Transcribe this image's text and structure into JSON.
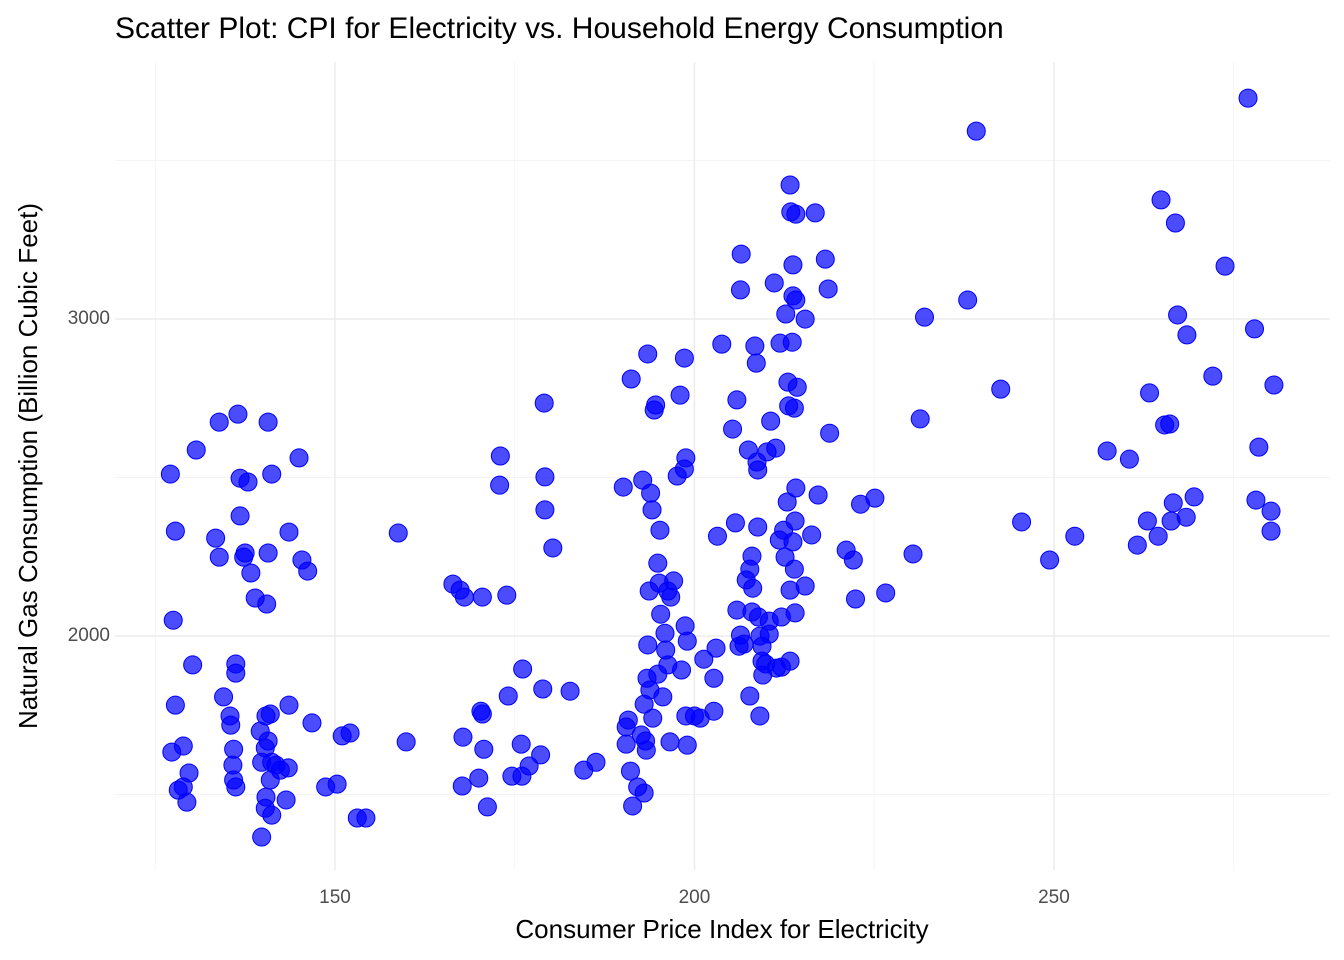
{
  "chart_data": {
    "type": "scatter",
    "title": "Scatter Plot: CPI for Electricity vs. Household Energy Consumption",
    "x_label": "Consumer Price Index for Electricity",
    "y_label": "Natural Gas Consumption (Billion Cubic Feet)",
    "color": "#0000ff",
    "xlim": [
      119.4,
      288.4
    ],
    "ylim": [
      1262,
      3811
    ],
    "xticks": [
      150,
      200,
      250
    ],
    "yticks": [
      2000,
      3000
    ],
    "xminorticks": [
      125,
      175,
      225,
      275
    ],
    "yminorticks": [
      1500,
      2500,
      3500
    ],
    "grid": true,
    "x": [
      127.1,
      127.8,
      127.5,
      127.8,
      127.3,
      128.9,
      128.2,
      128.9,
      129.4,
      129.7,
      130.2,
      130.7,
      133.4,
      133.9,
      133.9,
      134.5,
      135.4,
      135.5,
      136.2,
      136.2,
      135.9,
      135.8,
      135.9,
      136.2,
      136.5,
      136.8,
      136.8,
      137.9,
      137.3,
      137.5,
      138.3,
      138.9,
      140.7,
      140.5,
      140.7,
      141.2,
      139.6,
      139.8,
      140.4,
      140.3,
      139.8,
      140.7,
      141.0,
      141.2,
      141.0,
      140.4,
      140.3,
      141.2,
      141.8,
      142.4,
      143.5,
      143.2,
      143.6,
      143.6,
      145.0,
      145.4,
      146.2,
      146.8,
      148.7,
      150.3,
      151.0,
      152.1,
      153.1,
      154.3,
      158.8,
      159.9,
      166.4,
      167.4,
      168.0,
      167.8,
      167.7,
      170.0,
      170.3,
      170.5,
      170.7,
      170.5,
      171.2,
      173.0,
      172.9,
      173.9,
      174.1,
      174.6,
      176.0,
      175.9,
      176.1,
      177.0,
      178.6,
      178.9,
      179.1,
      179.2,
      179.2,
      180.3,
      182.7,
      184.6,
      186.3,
      190.1,
      190.5,
      190.8,
      190.5,
      191.1,
      191.2,
      191.4,
      192.1,
      192.6,
      193.0,
      193.2,
      192.8,
      193.0,
      193.3,
      193.4,
      193.5,
      193.5,
      193.7,
      193.8,
      193.9,
      194.1,
      194.2,
      194.4,
      194.6,
      194.9,
      194.9,
      195.1,
      195.2,
      195.3,
      195.6,
      195.9,
      196.0,
      196.3,
      196.3,
      196.7,
      196.6,
      197.1,
      197.6,
      198.0,
      198.2,
      198.6,
      198.6,
      198.7,
      198.8,
      199.0,
      199.0,
      198.8,
      200.0,
      200.8,
      201.3,
      202.7,
      202.7,
      203.0,
      203.2,
      203.8,
      205.3,
      205.7,
      205.9,
      205.9,
      206.2,
      206.4,
      206.5,
      206.4,
      206.9,
      207.2,
      207.5,
      207.7,
      207.7,
      208.0,
      208.1,
      208.0,
      208.4,
      208.6,
      208.7,
      208.8,
      208.8,
      208.9,
      209.1,
      209.1,
      209.4,
      209.4,
      209.5,
      209.9,
      210.1,
      210.4,
      210.4,
      210.6,
      211.1,
      211.3,
      211.4,
      211.8,
      211.9,
      212.1,
      212.1,
      212.4,
      212.6,
      212.7,
      212.9,
      213.0,
      213.1,
      213.3,
      213.3,
      213.3,
      213.4,
      213.6,
      213.7,
      213.7,
      213.9,
      213.7,
      213.9,
      214.0,
      214.1,
      214.0,
      214.1,
      214.3,
      214.1,
      215.4,
      215.4,
      216.3,
      216.8,
      217.2,
      218.2,
      218.6,
      218.8,
      221.1,
      222.1,
      222.4,
      223.1,
      225.1,
      226.6,
      230.4,
      231.4,
      232.0,
      238.0,
      239.2,
      242.6,
      245.5,
      249.4,
      252.9,
      257.4,
      260.5,
      261.6,
      263.0,
      263.3,
      264.5,
      264.9,
      265.4,
      266.1,
      266.3,
      266.6,
      266.9,
      267.2,
      268.4,
      268.5,
      269.5,
      272.1,
      273.8,
      277.0,
      277.9,
      278.1,
      278.5,
      280.2,
      280.2,
      280.6
    ],
    "values": [
      2511,
      2331,
      2050,
      1782,
      1634,
      1653,
      1514,
      1524,
      1476,
      1568,
      1909,
      2587,
      2309,
      2249,
      2675,
      1808,
      1748,
      1719,
      1912,
      1883,
      1643,
      1593,
      1546,
      1524,
      2700,
      2379,
      2498,
      2486,
      2249,
      2262,
      2199,
      2120,
      2675,
      2101,
      2262,
      2511,
      1700,
      1366,
      1748,
      1647,
      1602,
      1669,
      1754,
      1602,
      1546,
      1492,
      1457,
      1435,
      1593,
      1577,
      1584,
      1483,
      1782,
      2328,
      2562,
      2240,
      2205,
      1726,
      1524,
      1533,
      1685,
      1694,
      1426,
      1426,
      2325,
      1666,
      2164,
      2145,
      2123,
      1681,
      1527,
      1552,
      1763,
      1754,
      1643,
      2123,
      1461,
      2568,
      2476,
      2129,
      1811,
      1558,
      1558,
      1659,
      1896,
      1590,
      1625,
      1833,
      2735,
      2502,
      2398,
      2278,
      1826,
      1577,
      1602,
      2470,
      1713,
      1735,
      1659,
      1574,
      2811,
      1464,
      1524,
      1688,
      1505,
      1669,
      2492,
      1785,
      1640,
      1867,
      1972,
      2890,
      2142,
      1830,
      2451,
      2398,
      1741,
      2713,
      2729,
      1880,
      2230,
      2167,
      2334,
      2069,
      1808,
      2009,
      1956,
      1909,
      2142,
      2123,
      1666,
      2174,
      2505,
      2760,
      1893,
      2527,
      2877,
      2032,
      2562,
      1984,
      1656,
      1748,
      1748,
      1741,
      1927,
      1867,
      1763,
      1962,
      2315,
      2921,
      2653,
      2357,
      2745,
      2082,
      1968,
      3092,
      3205,
      2003,
      1975,
      2177,
      2587,
      2211,
      1811,
      2252,
      2151,
      2076,
      2915,
      2861,
      2549,
      2524,
      2344,
      2060,
      2000,
      1748,
      1968,
      1921,
      1877,
      1912,
      2581,
      2006,
      2047,
      2678,
      3114,
      2593,
      1899,
      2303,
      2924,
      2060,
      1902,
      2334,
      2249,
      3016,
      2423,
      2801,
      2726,
      3423,
      2145,
      1921,
      3338,
      2927,
      3171,
      3073,
      2719,
      2297,
      2211,
      2363,
      2467,
      2073,
      3060,
      2785,
      3331,
      3000,
      2158,
      2319,
      3335,
      2445,
      3189,
      3095,
      2640,
      2271,
      2240,
      2117,
      2416,
      2435,
      2136,
      2259,
      2685,
      3006,
      3060,
      3593,
      2779,
      2360,
      2240,
      2315,
      2584,
      2558,
      2287,
      2363,
      2767,
      2315,
      3376,
      2666,
      2669,
      2363,
      2420,
      3303,
      3013,
      2375,
      2950,
      2439,
      2820,
      3167,
      3697,
      2969,
      2429,
      2596,
      2394,
      2331,
      2792
    ]
  }
}
